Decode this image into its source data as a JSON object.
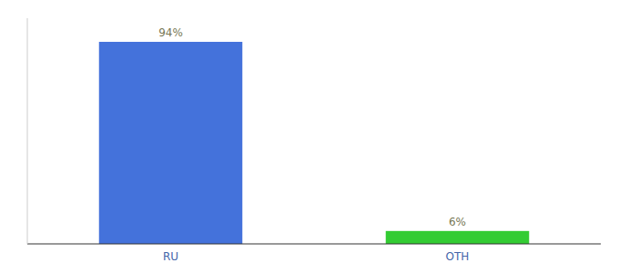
{
  "chart_data": {
    "type": "bar",
    "categories": [
      "RU",
      "OTH"
    ],
    "values": [
      94,
      6
    ],
    "value_labels": [
      "94%",
      "6%"
    ],
    "colors": [
      "#4472DB",
      "#33CC33"
    ],
    "ylim": [
      0,
      105
    ],
    "data_labels": true,
    "tick_labels": "x",
    "grid": false
  }
}
